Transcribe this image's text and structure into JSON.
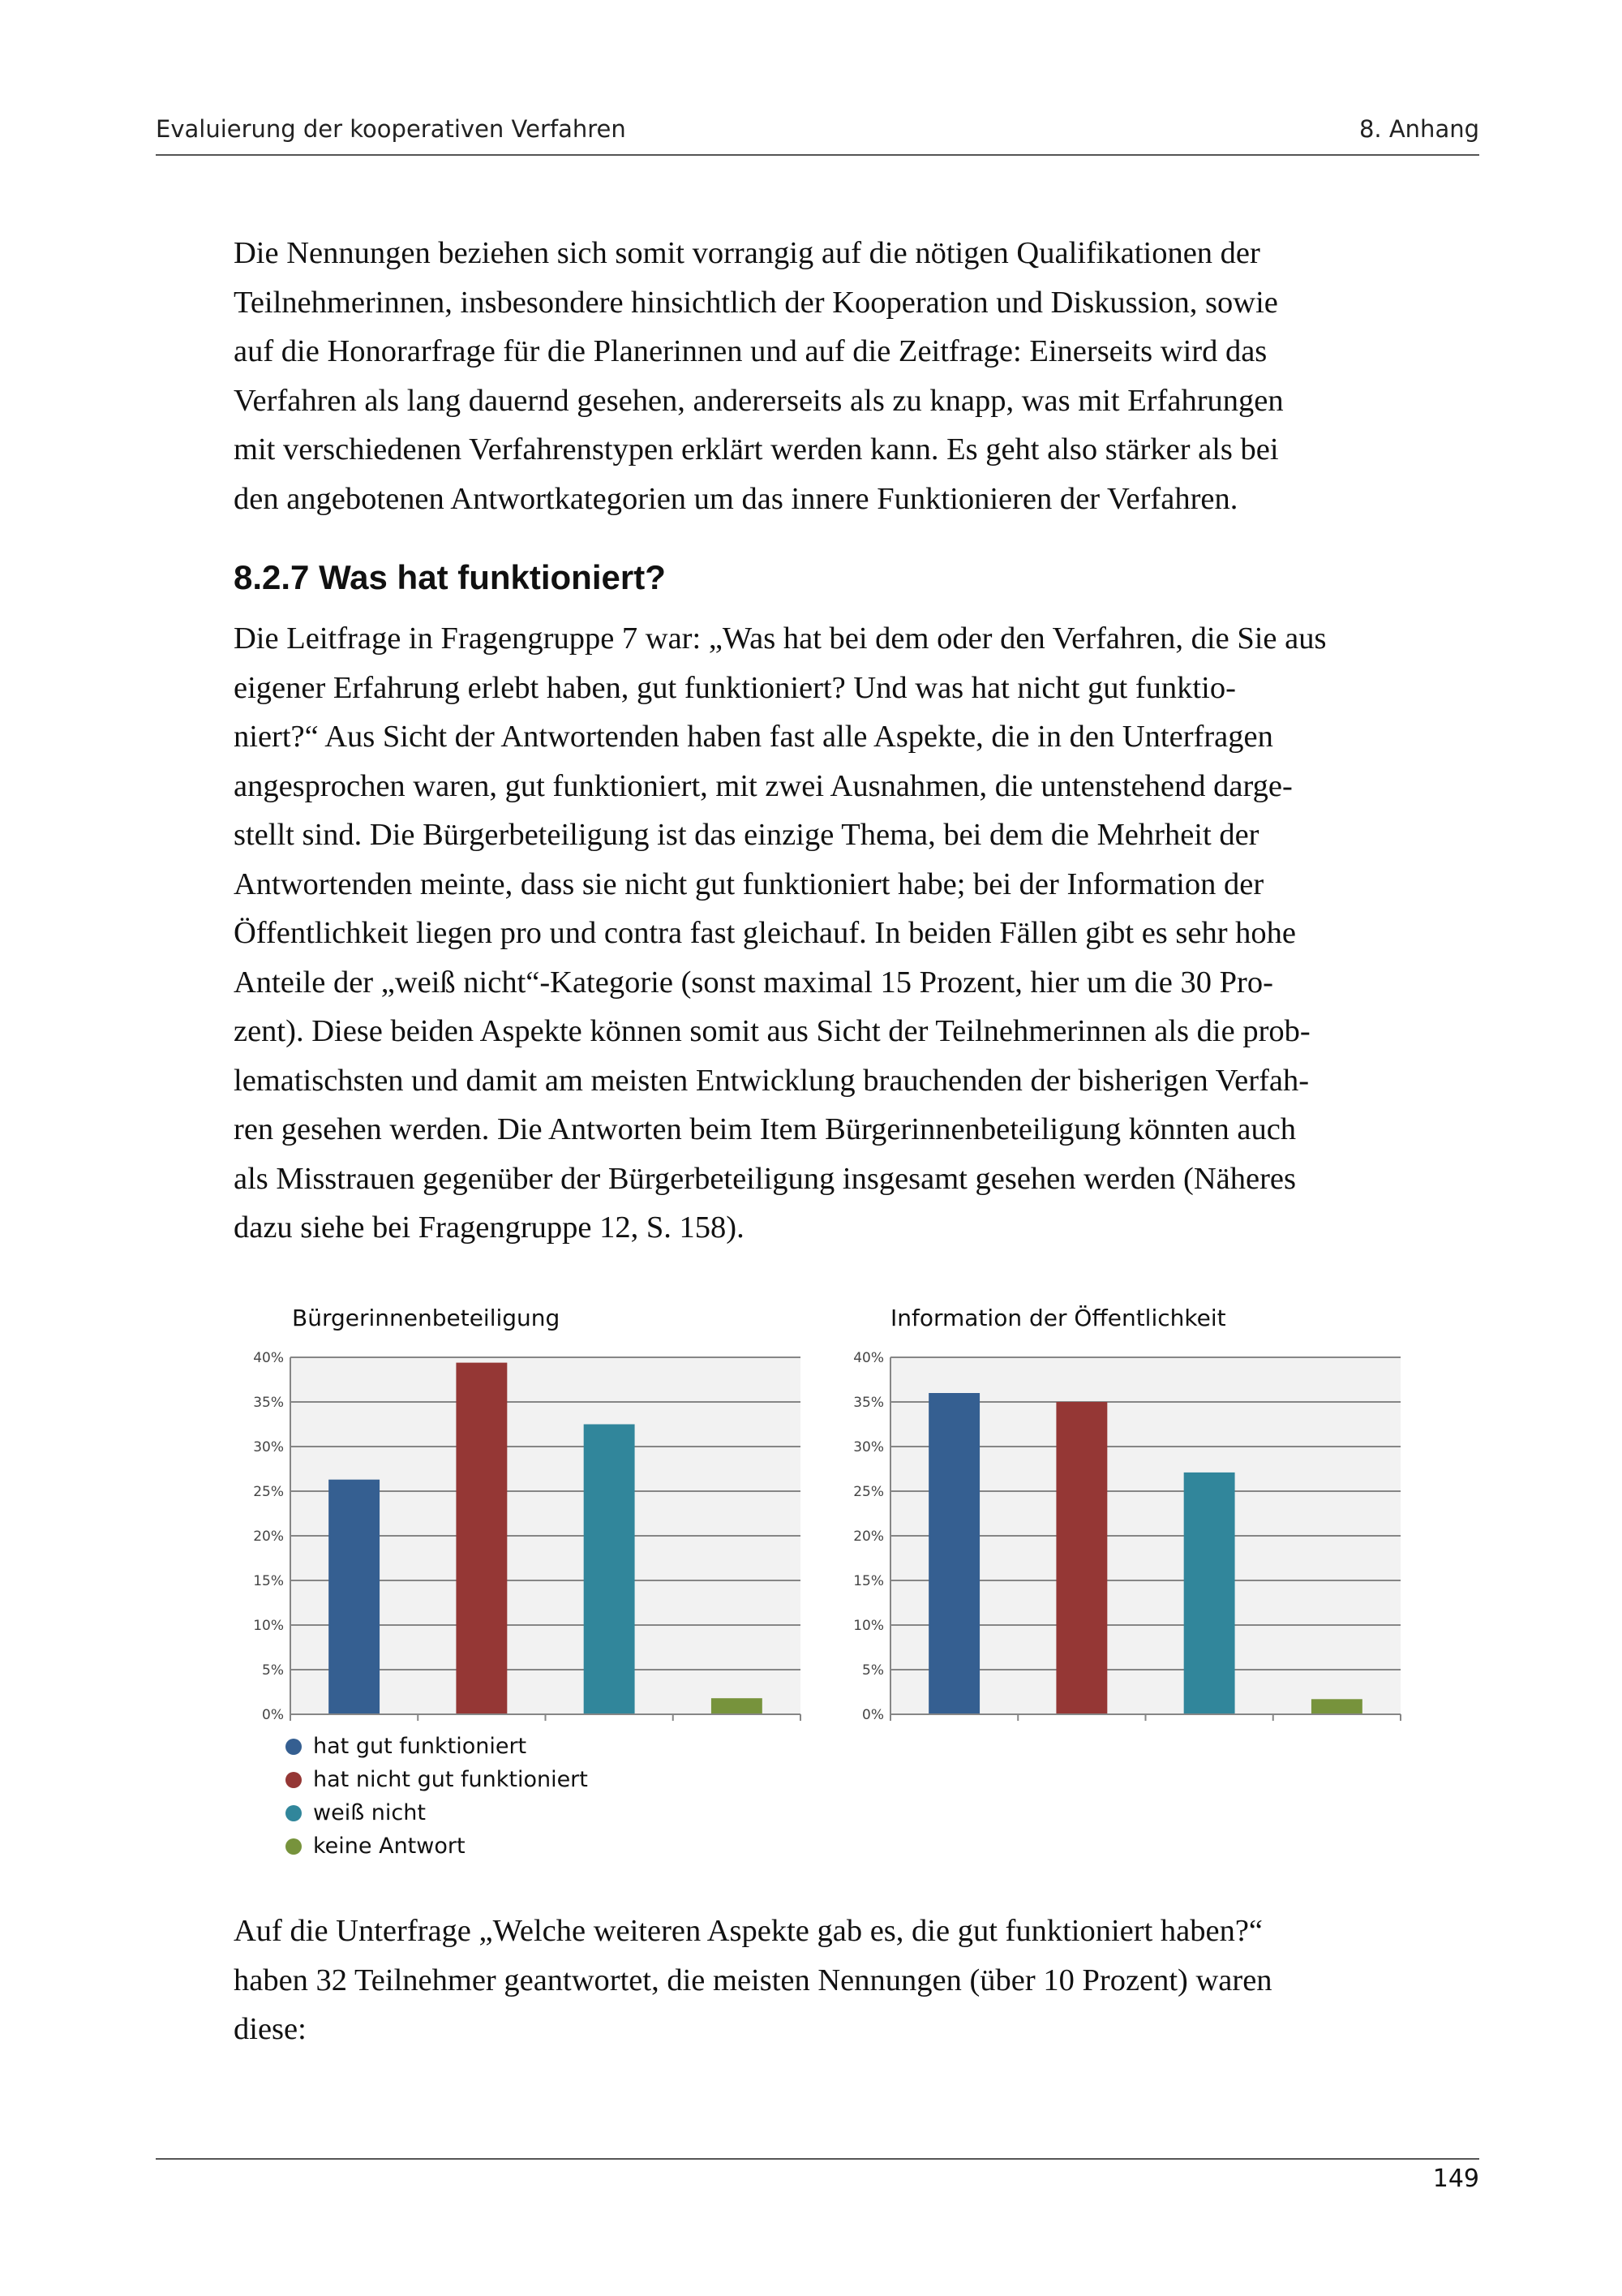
{
  "header": {
    "left": "Evaluierung der kooperativen Verfahren",
    "right": "8. Anhang"
  },
  "paragraph1": [
    "Die Nennungen beziehen sich somit vorrangig auf die nötigen Qualifikationen der",
    "Teilnehmerinnen, insbesondere hinsichtlich der Kooperation und Diskussion, sowie",
    "auf die Honorarfrage für die Planerinnen und auf die Zeitfrage: Einerseits wird das",
    "Verfahren als lang dauernd gesehen, andererseits als zu knapp, was mit Erfahrungen",
    "mit verschiedenen Verfahrenstypen erklärt werden kann. Es geht also stärker als bei",
    "den angebotenen Antwortkategorien um das innere Funktionieren der Verfahren."
  ],
  "section_heading": "8.2.7 Was hat funktioniert?",
  "paragraph2": [
    "Die Leitfrage in Fragengruppe 7 war: „Was hat bei dem oder den Verfahren, die Sie aus",
    "eigener Erfahrung erlebt haben, gut funktioniert? Und was hat nicht gut funktio-",
    "niert?“ Aus Sicht der Antwortenden haben fast alle Aspekte, die in den Unterfragen",
    "angesprochen waren, gut funktioniert, mit zwei Ausnahmen, die untenstehend darge-",
    "stellt sind. Die Bürgerbeteiligung ist das einzige Thema, bei dem die Mehrheit der",
    "Antwortenden meinte, dass sie nicht gut funktioniert habe; bei der Information der",
    "Öffentlichkeit liegen pro und contra fast gleichauf. In beiden Fällen gibt es sehr hohe",
    "Anteile der „weiß nicht“-Kategorie (sonst maximal 15 Prozent, hier um die 30 Pro-",
    "zent). Diese beiden Aspekte können somit aus Sicht der Teilnehmerinnen als die prob-",
    "lematischsten und damit am meisten Entwicklung brauchenden der bisherigen Verfah-",
    "ren gesehen werden. Die Antworten beim Item Bürgerinnenbeteiligung könnten auch",
    "als Misstrauen gegenüber der Bürgerbeteiligung insgesamt gesehen werden (Näheres",
    "dazu siehe bei Fragengruppe 12, S. 158)."
  ],
  "chart_data": [
    {
      "type": "bar",
      "title": "Bürgerinnenbeteiligung",
      "categories": [
        "hat gut funktioniert",
        "hat nicht gut funktioniert",
        "weiß nicht",
        "keine Antwort"
      ],
      "values": [
        26.3,
        39.4,
        32.5,
        1.8
      ],
      "colors": [
        "#355f91",
        "#953735",
        "#31869b",
        "#77933c"
      ],
      "yticks": [
        "0%",
        "5%",
        "10%",
        "15%",
        "20%",
        "25%",
        "30%",
        "35%",
        "40%"
      ],
      "ylim": [
        0,
        40
      ],
      "grid": true,
      "legend": "bottom"
    },
    {
      "type": "bar",
      "title": "Information der Öffentlichkeit",
      "categories": [
        "hat gut funktioniert",
        "hat nicht gut funktioniert",
        "weiß nicht",
        "keine Antwort"
      ],
      "values": [
        36.0,
        35.0,
        27.1,
        1.7
      ],
      "colors": [
        "#355f91",
        "#953735",
        "#31869b",
        "#77933c"
      ],
      "yticks": [
        "0%",
        "5%",
        "10%",
        "15%",
        "20%",
        "25%",
        "30%",
        "35%",
        "40%"
      ],
      "ylim": [
        0,
        40
      ],
      "grid": true,
      "legend": "none"
    }
  ],
  "legend": [
    {
      "label": "hat gut funktioniert",
      "color": "#355f91"
    },
    {
      "label": "hat nicht gut funktioniert",
      "color": "#953735"
    },
    {
      "label": "weiß nicht",
      "color": "#31869b"
    },
    {
      "label": "keine Antwort",
      "color": "#77933c"
    }
  ],
  "paragraph3": [
    "Auf die Unterfrage „Welche weiteren Aspekte gab es, die gut funktioniert haben?“",
    "haben 32 Teilnehmer geantwortet, die meisten Nennungen (über 10 Prozent) waren",
    "diese:"
  ],
  "page_number": "149"
}
